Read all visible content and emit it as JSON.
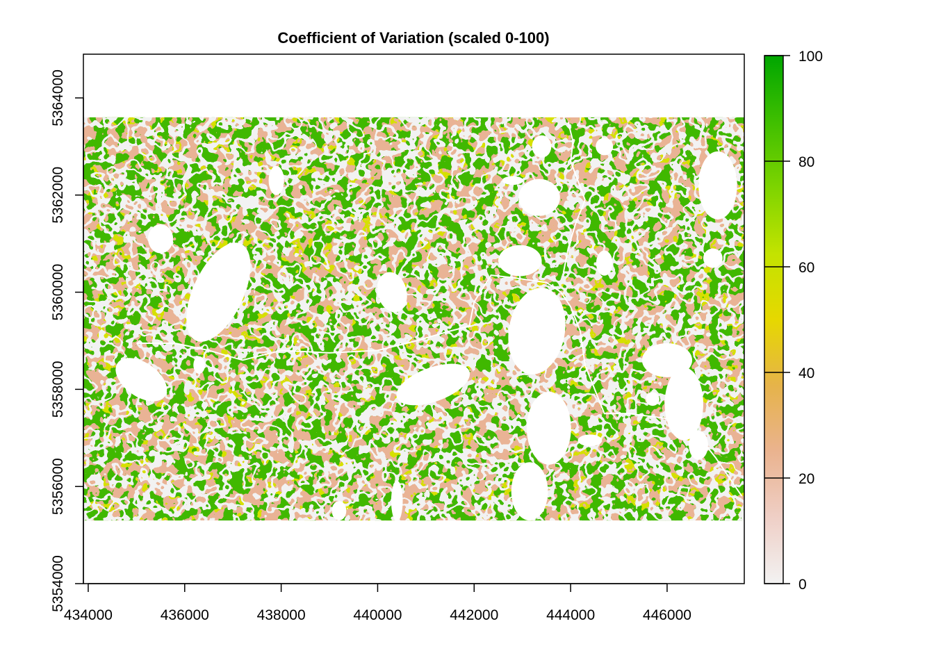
{
  "title": "Coefficient of Variation (scaled 0-100)",
  "x_axis": {
    "min": 433900,
    "max": 447600,
    "ticks": [
      434000,
      436000,
      438000,
      440000,
      442000,
      444000,
      446000
    ],
    "tick_labels": [
      "434000",
      "436000",
      "438000",
      "440000",
      "442000",
      "444000",
      "446000"
    ]
  },
  "y_axis": {
    "min": 5354000,
    "max": 5364900,
    "ticks": [
      5354000,
      5356000,
      5358000,
      5360000,
      5362000,
      5364000
    ],
    "tick_labels": [
      "5354000",
      "5356000",
      "5358000",
      "5360000",
      "5362000",
      "5364000"
    ]
  },
  "raster_extent": {
    "xmin": 433900,
    "xmax": 447600,
    "ymin": 5355300,
    "ymax": 5363600
  },
  "legend": {
    "min": 0,
    "max": 100,
    "ticks": [
      0,
      20,
      40,
      60,
      80,
      100
    ],
    "tick_labels": [
      "0",
      "20",
      "40",
      "60",
      "80",
      "100"
    ],
    "colors": [
      "#f2f2f2",
      "#efcfc6",
      "#eab38f",
      "#e6b34a",
      "#e6d800",
      "#c3e300",
      "#7ed400",
      "#3fbf00",
      "#00a600"
    ]
  },
  "chart_data": {
    "type": "heatmap",
    "title": "Coefficient of Variation (scaled 0-100)",
    "xlabel": "",
    "ylabel": "",
    "xlim": [
      433900,
      447600
    ],
    "ylim": [
      5354000,
      5364900
    ],
    "value_range": [
      0,
      100
    ],
    "no_data": "white",
    "lines": [
      {
        "points": [
          [
            435000,
            5358950
          ],
          [
            435800,
            5358950
          ],
          [
            436500,
            5358800
          ],
          [
            437200,
            5358600
          ],
          [
            438000,
            5358800
          ],
          [
            439000,
            5358750
          ],
          [
            440000,
            5358800
          ],
          [
            440800,
            5359000
          ],
          [
            441500,
            5359200
          ],
          [
            441900,
            5359300
          ],
          [
            442000,
            5359800
          ],
          [
            442350,
            5360350
          ],
          [
            442800,
            5360300
          ],
          [
            443500,
            5360200
          ],
          [
            443800,
            5360000
          ],
          [
            444000,
            5359700
          ],
          [
            444200,
            5359200
          ],
          [
            444300,
            5358500
          ],
          [
            444500,
            5358000
          ],
          [
            444700,
            5357500
          ],
          [
            445200,
            5357500
          ],
          [
            446000,
            5357400
          ],
          [
            446600,
            5357100
          ],
          [
            447000,
            5356600
          ],
          [
            447550,
            5355800
          ]
        ]
      },
      {
        "points": [
          [
            443950,
            5363500
          ],
          [
            444050,
            5363100
          ],
          [
            444000,
            5362700
          ],
          [
            444150,
            5362300
          ],
          [
            444300,
            5361900
          ],
          [
            444100,
            5361400
          ],
          [
            443950,
            5360900
          ],
          [
            443850,
            5360400
          ]
        ]
      }
    ],
    "no_data_patches": [
      [
        436700,
        5360000,
        520,
        1100,
        25
      ],
      [
        435500,
        5361100,
        260,
        300,
        0
      ],
      [
        440300,
        5360000,
        300,
        420,
        -15
      ],
      [
        441150,
        5358100,
        800,
        350,
        -20
      ],
      [
        443300,
        5359200,
        580,
        900,
        10
      ],
      [
        443550,
        5357200,
        460,
        750,
        0
      ],
      [
        443150,
        5355900,
        380,
        600,
        0
      ],
      [
        442950,
        5360650,
        450,
        320,
        0
      ],
      [
        443350,
        5361950,
        430,
        380,
        0
      ],
      [
        444700,
        5360600,
        170,
        260,
        0
      ],
      [
        446350,
        5357700,
        400,
        750,
        0
      ],
      [
        446000,
        5358600,
        520,
        350,
        0
      ],
      [
        446650,
        5356850,
        200,
        300,
        0
      ],
      [
        447050,
        5362200,
        400,
        700,
        0
      ],
      [
        435100,
        5358200,
        600,
        350,
        35
      ],
      [
        443400,
        5363000,
        200,
        230,
        0
      ],
      [
        444700,
        5363000,
        180,
        180,
        0
      ],
      [
        442800,
        5362300,
        220,
        90,
        0
      ],
      [
        437900,
        5362300,
        160,
        300,
        0
      ],
      [
        445700,
        5357800,
        140,
        140,
        0
      ],
      [
        446950,
        5360700,
        200,
        200,
        0
      ],
      [
        444400,
        5356950,
        250,
        120,
        0
      ],
      [
        440400,
        5355700,
        120,
        420,
        0
      ],
      [
        439200,
        5355500,
        150,
        200,
        0
      ],
      [
        436300,
        5358500,
        120,
        180,
        0
      ]
    ]
  }
}
